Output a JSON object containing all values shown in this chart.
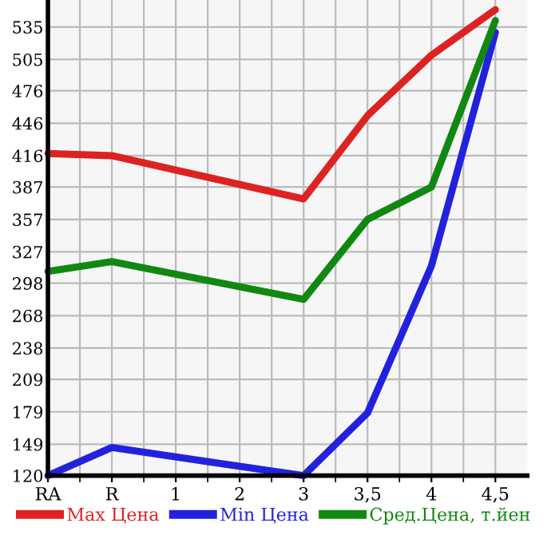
{
  "chart_data": {
    "type": "line",
    "categories": [
      "RA",
      "R",
      "1",
      "2",
      "3",
      "3,5",
      "4",
      "4,5"
    ],
    "series": [
      {
        "name": "Max Цена",
        "color": "#dd2222",
        "values": [
          418,
          416,
          null,
          null,
          376,
          453,
          509,
          551
        ]
      },
      {
        "name": "Min Цена",
        "color": "#2222dd",
        "values": [
          120,
          146,
          null,
          null,
          120,
          178,
          314,
          530
        ]
      },
      {
        "name": "Сред.Цена, т.йен",
        "color": "#118811",
        "values": [
          309,
          318,
          null,
          null,
          283,
          357,
          387,
          541
        ]
      }
    ],
    "ylim": [
      120,
      560
    ],
    "yticks": [
      120,
      149,
      179,
      209,
      238,
      268,
      298,
      327,
      357,
      387,
      416,
      446,
      476,
      505,
      535
    ],
    "grid": true,
    "legend": "bottom",
    "marker": "none",
    "line_style": "solid"
  }
}
